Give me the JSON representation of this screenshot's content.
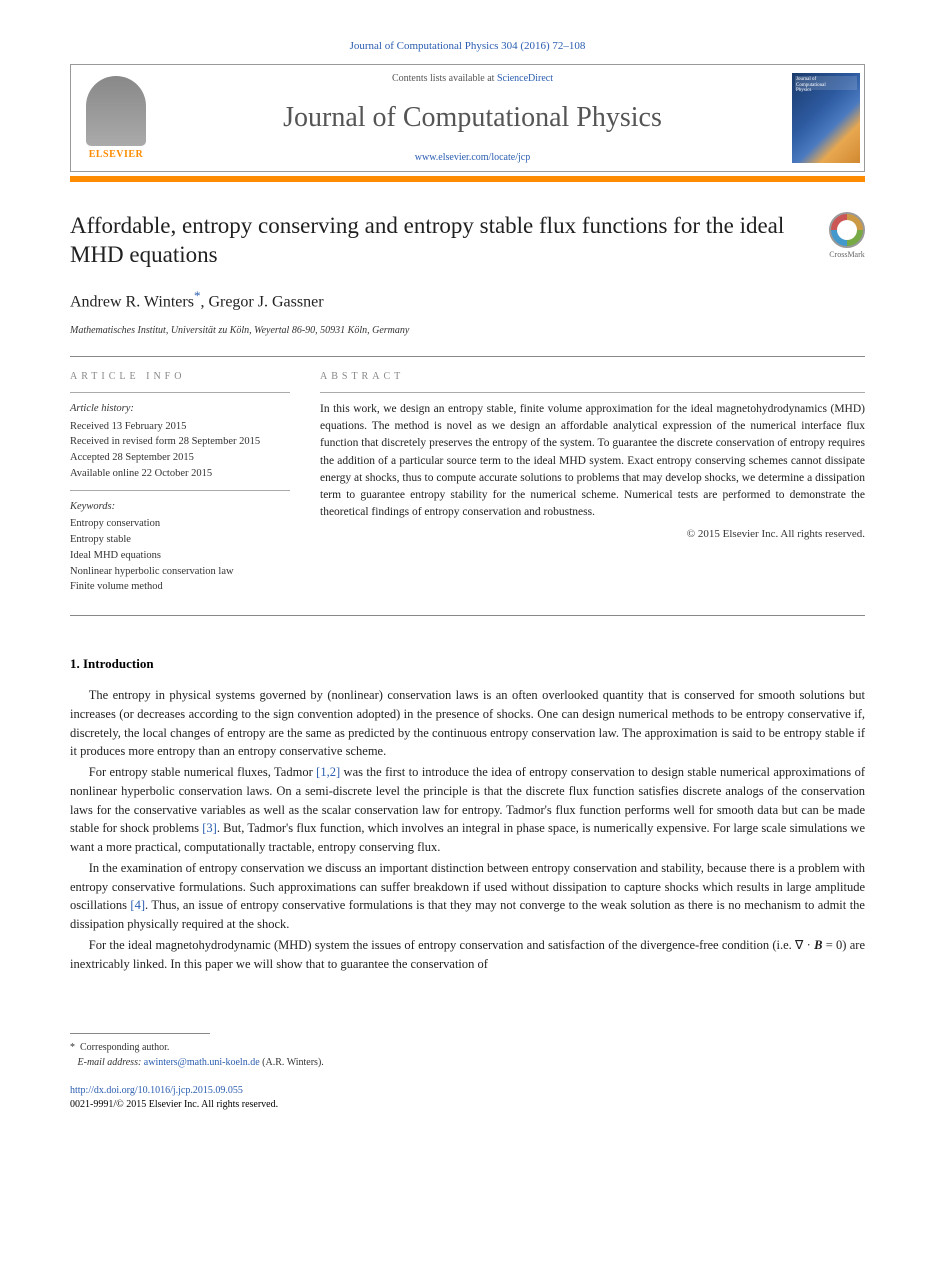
{
  "citation": "Journal of Computational Physics 304 (2016) 72–108",
  "header": {
    "contents_prefix": "Contents lists available at ",
    "contents_link": "ScienceDirect",
    "journal_name": "Journal of Computational Physics",
    "journal_url": "www.elsevier.com/locate/jcp",
    "publisher_label": "ELSEVIER",
    "cover_line1": "Journal of",
    "cover_line2": "Computational",
    "cover_line3": "Physics"
  },
  "crossmark_label": "CrossMark",
  "title": "Affordable, entropy conserving and entropy stable flux functions for the ideal MHD equations",
  "authors": {
    "a1": "Andrew R. Winters",
    "mark": "*",
    "sep": ", ",
    "a2": "Gregor J. Gassner"
  },
  "affiliation": "Mathematisches Institut, Universität zu Köln, Weyertal 86-90, 50931 Köln, Germany",
  "labels": {
    "article_info": "article info",
    "abstract": "abstract"
  },
  "history": {
    "heading": "Article history:",
    "l1": "Received 13 February 2015",
    "l2": "Received in revised form 28 September 2015",
    "l3": "Accepted 28 September 2015",
    "l4": "Available online 22 October 2015"
  },
  "keywords": {
    "heading": "Keywords:",
    "k1": "Entropy conservation",
    "k2": "Entropy stable",
    "k3": "Ideal MHD equations",
    "k4": "Nonlinear hyperbolic conservation law",
    "k5": "Finite volume method"
  },
  "abstract": "In this work, we design an entropy stable, finite volume approximation for the ideal magnetohydrodynamics (MHD) equations. The method is novel as we design an affordable analytical expression of the numerical interface flux function that discretely preserves the entropy of the system. To guarantee the discrete conservation of entropy requires the addition of a particular source term to the ideal MHD system. Exact entropy conserving schemes cannot dissipate energy at shocks, thus to compute accurate solutions to problems that may develop shocks, we determine a dissipation term to guarantee entropy stability for the numerical scheme. Numerical tests are performed to demonstrate the theoretical findings of entropy conservation and robustness.",
  "copyright": "© 2015 Elsevier Inc. All rights reserved.",
  "section1": {
    "heading": "1.  Introduction",
    "p1a": "The entropy in physical systems governed by (nonlinear) conservation laws is an often overlooked quantity that is conserved for smooth solutions but increases (or decreases according to the sign convention adopted) in the presence of shocks. One can design numerical methods to be entropy conservative if, discretely, the local changes of entropy are the same as predicted by the continuous entropy conservation law. The approximation is said to be entropy stable if it produces more entropy than an entropy conservative scheme.",
    "p2a": "For entropy stable numerical fluxes, Tadmor ",
    "ref12": "[1,2]",
    "p2b": " was the first to introduce the idea of entropy conservation to design stable numerical approximations of nonlinear hyperbolic conservation laws. On a semi-discrete level the principle is that the discrete flux function satisfies discrete analogs of the conservation laws for the conservative variables as well as the scalar conservation law for entropy. Tadmor's flux function performs well for smooth data but can be made stable for shock problems ",
    "ref3": "[3]",
    "p2c": ". But, Tadmor's flux function, which involves an integral in phase space, is numerically expensive. For large scale simulations we want a more practical, computationally tractable, entropy conserving flux.",
    "p3a": "In the examination of entropy conservation we discuss an important distinction between entropy conservation and stability, because there is a problem with entropy conservative formulations. Such approximations can suffer breakdown if used without dissipation to capture shocks which results in large amplitude oscillations ",
    "ref4": "[4]",
    "p3b": ". Thus, an issue of entropy conservative formulations is that they may not converge to the weak solution as there is no mechanism to admit the dissipation physically required at the shock.",
    "p4a": "For the ideal magnetohydrodynamic (MHD) system the issues of entropy conservation and satisfaction of the divergence-free condition (i.e. ∇ · ",
    "bvec": "B",
    "p4b": " = 0) are inextricably linked. In this paper we will show that to guarantee the conservation of"
  },
  "footnotes": {
    "corresponding": "Corresponding author.",
    "mark": "*",
    "email_label": "E-mail address: ",
    "email": "awinters@math.uni-koeln.de",
    "email_who": " (A.R. Winters)."
  },
  "doi": {
    "url": "http://dx.doi.org/10.1016/j.jcp.2015.09.055",
    "issn_line": "0021-9991/© 2015 Elsevier Inc. All rights reserved."
  }
}
